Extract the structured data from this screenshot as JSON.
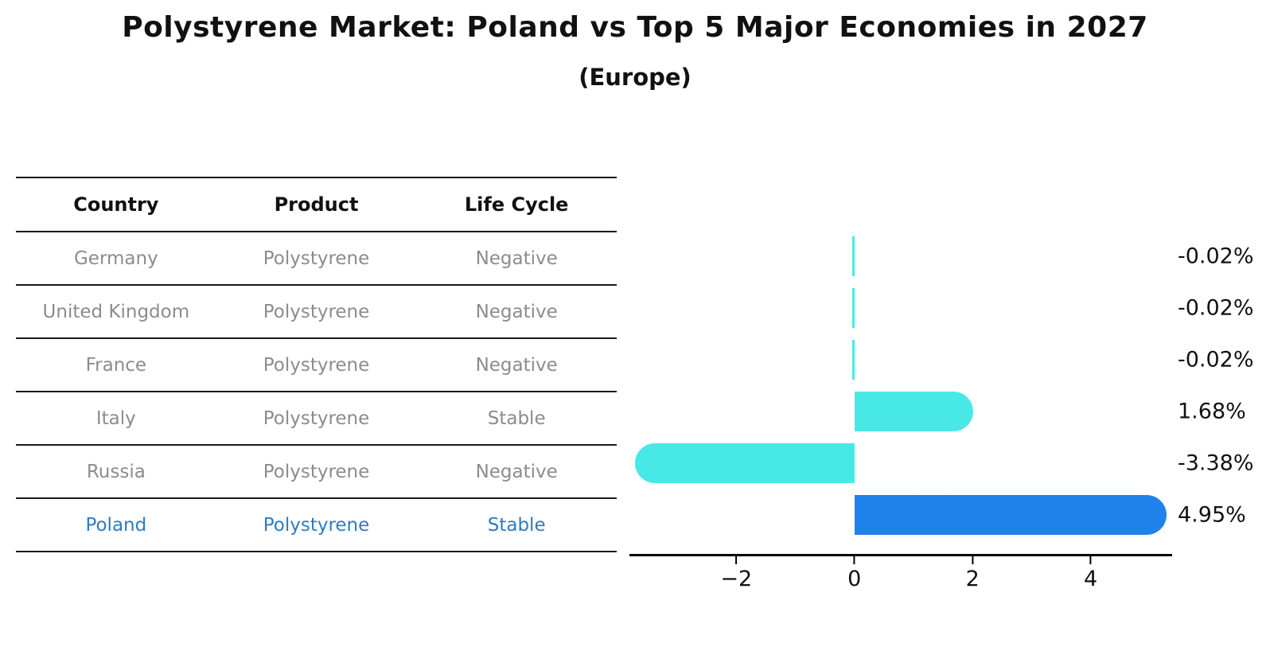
{
  "figure": {
    "title": "Polystyrene Market: Poland vs Top 5 Major Economies in 2027",
    "subtitle": "(Europe)"
  },
  "table": {
    "headers": [
      "Country",
      "Product",
      "Life Cycle"
    ],
    "rows": [
      {
        "country": "Germany",
        "product": "Polystyrene",
        "life_cycle": "Negative",
        "highlight": false
      },
      {
        "country": "United Kingdom",
        "product": "Polystyrene",
        "life_cycle": "Negative",
        "highlight": false
      },
      {
        "country": "France",
        "product": "Polystyrene",
        "life_cycle": "Negative",
        "highlight": false
      },
      {
        "country": "Italy",
        "product": "Polystyrene",
        "life_cycle": "Stable",
        "highlight": false
      },
      {
        "country": "Russia",
        "product": "Polystyrene",
        "life_cycle": "Negative",
        "highlight": false
      },
      {
        "country": "Poland",
        "product": "Polystyrene",
        "life_cycle": "Stable",
        "highlight": true
      }
    ]
  },
  "chart_data": {
    "type": "bar",
    "orientation": "horizontal",
    "title": "Polystyrene Market: Poland vs Top 5 Major Economies in 2027 (Europe)",
    "categories": [
      "Germany",
      "United Kingdom",
      "France",
      "Italy",
      "Russia",
      "Poland"
    ],
    "values": [
      -0.02,
      -0.02,
      -0.02,
      1.68,
      -3.38,
      4.95
    ],
    "value_labels": [
      "-0.02%",
      "-0.02%",
      "-0.02%",
      "1.68%",
      "-3.38%",
      "4.95%"
    ],
    "xticks": [
      -2,
      0,
      2,
      4
    ],
    "xtick_labels": [
      "−2",
      "0",
      "2",
      "4"
    ],
    "xlim": [
      -3.81,
      5.38
    ],
    "highlight_index": 5,
    "grid": false,
    "legend": false,
    "colors": {
      "bar": "#48E8E6",
      "highlight_bar": "#1E82EA",
      "axis": "#000000",
      "value_text": "#111111",
      "highlight_text": "#2b7cc4",
      "row_text": "#8c8c8c"
    }
  }
}
